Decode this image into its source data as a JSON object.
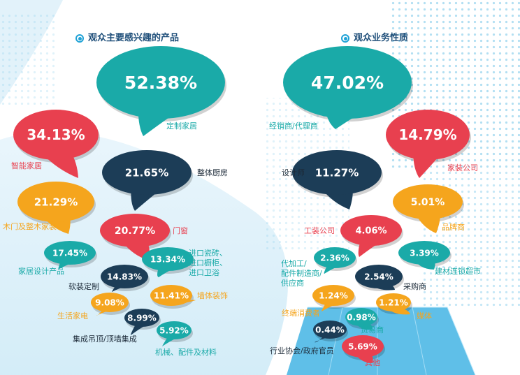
{
  "colors": {
    "teal": "#1aaaa8",
    "red": "#e8404f",
    "navy": "#1c3d57",
    "orange": "#f5a51d",
    "title": "#1f4f7a",
    "title_dot": "#1fa2d6"
  },
  "chart_data": [
    {
      "type": "bubble-infographic",
      "title": "观众主要感兴趣的产品",
      "items": [
        {
          "label": "定制家居",
          "value": 52.38,
          "display": "52.38%",
          "color": "teal"
        },
        {
          "label": "智能家居",
          "value": 34.13,
          "display": "34.13%",
          "color": "red"
        },
        {
          "label": "整体厨房",
          "value": 21.65,
          "display": "21.65%",
          "color": "navy"
        },
        {
          "label": "木门及整木家装",
          "value": 21.29,
          "display": "21.29%",
          "color": "orange"
        },
        {
          "label": "门窗",
          "value": 20.77,
          "display": "20.77%",
          "color": "red"
        },
        {
          "label": "家居设计产品",
          "value": 17.45,
          "display": "17.45%",
          "color": "teal"
        },
        {
          "label": "进口瓷砖、进口橱柜、进口卫浴",
          "value": 13.34,
          "display": "13.34%",
          "color": "teal"
        },
        {
          "label": "软装定制",
          "value": 14.83,
          "display": "14.83%",
          "color": "navy"
        },
        {
          "label": "墙体装饰",
          "value": 11.41,
          "display": "11.41%",
          "color": "orange"
        },
        {
          "label": "生活家电",
          "value": 9.08,
          "display": "9.08%",
          "color": "orange"
        },
        {
          "label": "集成吊顶/顶墙集成",
          "value": 8.99,
          "display": "8.99%",
          "color": "navy"
        },
        {
          "label": "机械、配件及材料",
          "value": 5.92,
          "display": "5.92%",
          "color": "teal"
        }
      ]
    },
    {
      "type": "bubble-infographic",
      "title": "观众业务性质",
      "items": [
        {
          "label": "经销商/代理商",
          "value": 47.02,
          "display": "47.02%",
          "color": "teal"
        },
        {
          "label": "家装公司",
          "value": 14.79,
          "display": "14.79%",
          "color": "red"
        },
        {
          "label": "设计师",
          "value": 11.27,
          "display": "11.27%",
          "color": "navy"
        },
        {
          "label": "品牌商",
          "value": 5.01,
          "display": "5.01%",
          "color": "orange"
        },
        {
          "label": "工装公司",
          "value": 4.06,
          "display": "4.06%",
          "color": "red"
        },
        {
          "label": "代加工/配件制造商/供应商",
          "value": 2.36,
          "display": "2.36%",
          "color": "teal"
        },
        {
          "label": "建材连锁超市",
          "value": 3.39,
          "display": "3.39%",
          "color": "teal"
        },
        {
          "label": "采购商",
          "value": 2.54,
          "display": "2.54%",
          "color": "navy"
        },
        {
          "label": "终端消费者",
          "value": 1.24,
          "display": "1.24%",
          "color": "orange"
        },
        {
          "label": "媒体",
          "value": 1.21,
          "display": "1.21%",
          "color": "orange"
        },
        {
          "label": "贸易商",
          "value": 0.98,
          "display": "0.98%",
          "color": "teal"
        },
        {
          "label": "行业协会/政府官员",
          "value": 0.44,
          "display": "0.44%",
          "color": "navy"
        },
        {
          "label": "其他",
          "value": 5.69,
          "display": "5.69%",
          "color": "red"
        }
      ]
    }
  ]
}
